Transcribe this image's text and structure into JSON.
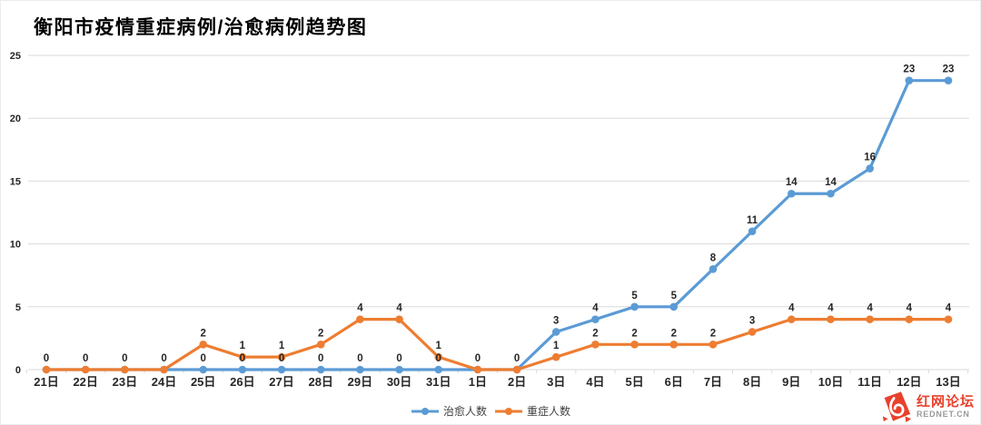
{
  "title": "衡阳市疫情重症病例/治愈病例趋势图",
  "watermark": {
    "name": "红网论坛",
    "domain": "REDNET.CN"
  },
  "chart_data": {
    "type": "line",
    "title": "衡阳市疫情重症病例/治愈病例趋势图",
    "categories": [
      "21日",
      "22日",
      "23日",
      "24日",
      "25日",
      "26日",
      "27日",
      "28日",
      "29日",
      "30日",
      "31日",
      "1日",
      "2日",
      "3日",
      "4日",
      "5日",
      "6日",
      "7日",
      "8日",
      "9日",
      "10日",
      "11日",
      "12日",
      "13日"
    ],
    "series": [
      {
        "name": "治愈人数",
        "color": "#5B9BD5",
        "values": [
          0,
          0,
          0,
          0,
          0,
          0,
          0,
          0,
          0,
          0,
          0,
          0,
          0,
          3,
          4,
          5,
          5,
          8,
          11,
          14,
          14,
          16,
          23,
          23
        ]
      },
      {
        "name": "重症人数",
        "color": "#ED7D31",
        "values": [
          0,
          0,
          0,
          0,
          2,
          1,
          1,
          2,
          4,
          4,
          1,
          0,
          0,
          1,
          2,
          2,
          2,
          2,
          3,
          4,
          4,
          4,
          4,
          4
        ]
      }
    ],
    "xlabel": "",
    "ylabel": "",
    "ylim": [
      0,
      25
    ],
    "yticks": [
      0,
      5,
      10,
      15,
      20,
      25
    ],
    "grid": true,
    "data_labels": true,
    "legend_position": "bottom",
    "grid_color": "#d9d9d9"
  }
}
